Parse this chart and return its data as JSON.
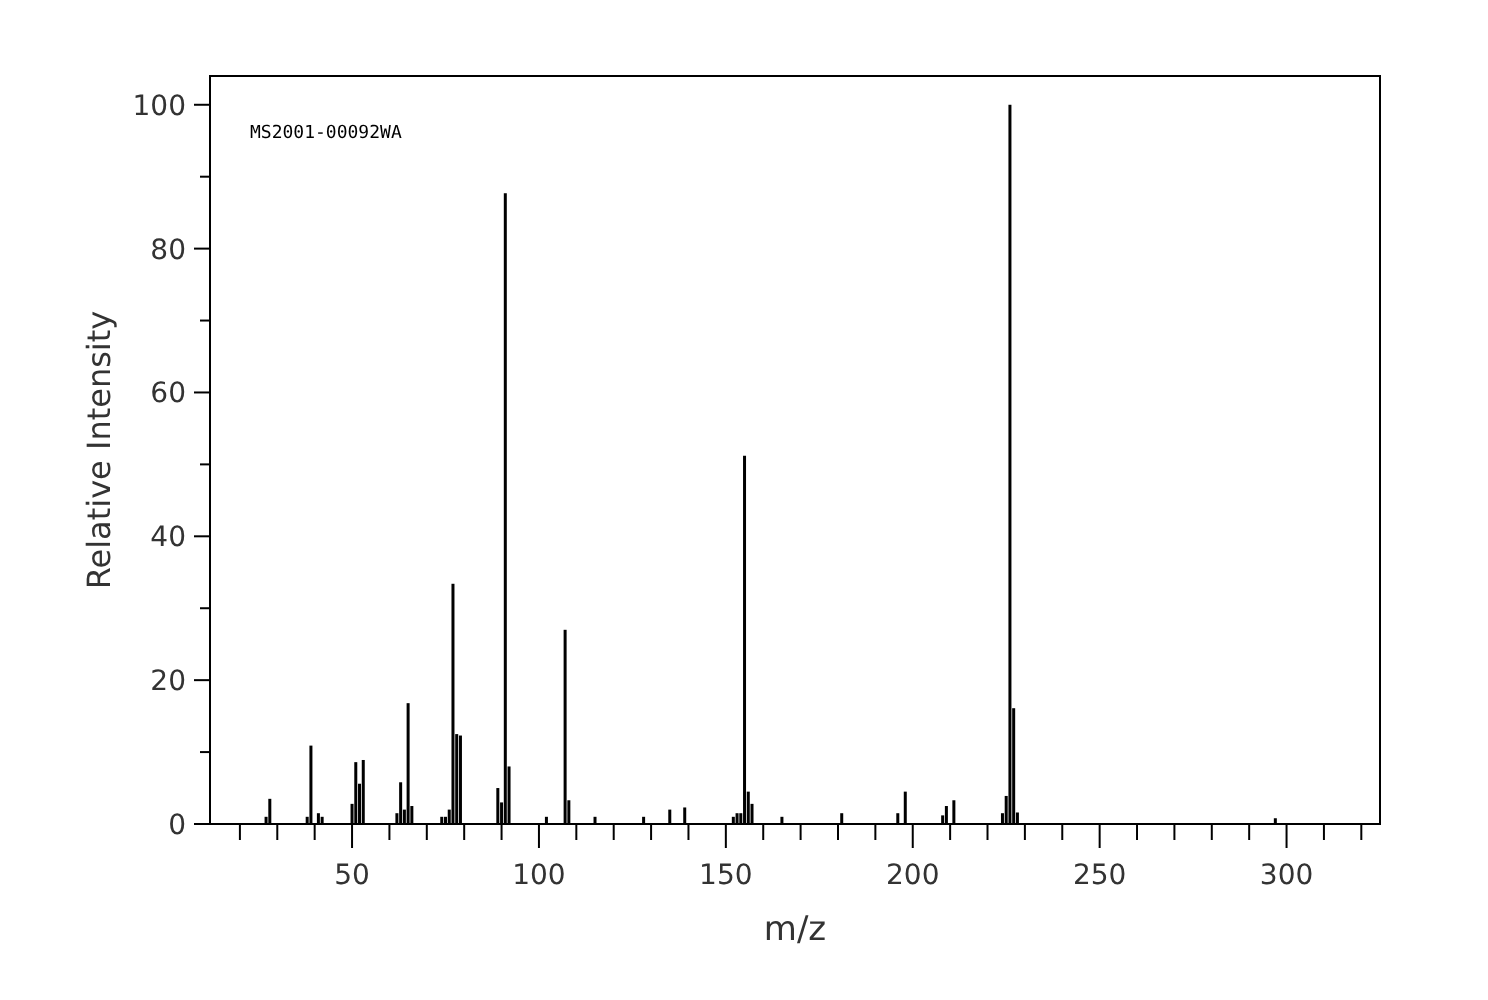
{
  "chart_data": {
    "type": "bar",
    "xlabel": "m/z",
    "ylabel": "Relative Intensity",
    "annotations": [
      "MS2001-00092WA"
    ],
    "x": [
      27,
      28,
      38,
      39,
      41,
      42,
      50,
      51,
      52,
      53,
      62,
      63,
      64,
      65,
      66,
      74,
      75,
      76,
      77,
      78,
      79,
      89,
      90,
      91,
      92,
      102,
      107,
      108,
      115,
      128,
      135,
      139,
      152,
      153,
      154,
      155,
      156,
      157,
      165,
      181,
      196,
      198,
      208,
      209,
      211,
      224,
      225,
      226,
      227,
      228,
      297
    ],
    "values": [
      1,
      3.5,
      1,
      10.9,
      1.5,
      1,
      2.8,
      8.6,
      5.6,
      8.9,
      1.5,
      5.8,
      2,
      16.8,
      2.5,
      1,
      1,
      2,
      33.4,
      12.5,
      12.3,
      5,
      3,
      87.7,
      8,
      1,
      27,
      3.3,
      1,
      1,
      2,
      2.3,
      1,
      1.5,
      1.5,
      51.2,
      4.5,
      2.8,
      1,
      1.5,
      1.5,
      4.5,
      1.2,
      2.5,
      3.3,
      1.5,
      3.9,
      100,
      16.1,
      1.6,
      0.8
    ],
    "color": "#000000",
    "xlim": [
      12,
      325
    ],
    "ylim": [
      0,
      104
    ],
    "xticks": [
      {
        "value": 20,
        "label": null
      },
      {
        "value": 30,
        "label": null
      },
      {
        "value": 40,
        "label": null
      },
      50,
      {
        "value": 60,
        "label": null
      },
      {
        "value": 70,
        "label": null
      },
      {
        "value": 80,
        "label": null
      },
      {
        "value": 90,
        "label": null
      },
      100,
      {
        "value": 110,
        "label": null
      },
      {
        "value": 120,
        "label": null
      },
      {
        "value": 130,
        "label": null
      },
      {
        "value": 140,
        "label": null
      },
      150,
      {
        "value": 160,
        "label": null
      },
      {
        "value": 170,
        "label": null
      },
      {
        "value": 180,
        "label": null
      },
      {
        "value": 190,
        "label": null
      },
      200,
      {
        "value": 210,
        "label": null
      },
      {
        "value": 220,
        "label": null
      },
      {
        "value": 230,
        "label": null
      },
      {
        "value": 240,
        "label": null
      },
      250,
      {
        "value": 260,
        "label": null
      },
      {
        "value": 270,
        "label": null
      },
      {
        "value": 280,
        "label": null
      },
      {
        "value": 290,
        "label": null
      },
      300,
      {
        "value": 310,
        "label": null
      },
      {
        "value": 320,
        "label": null
      }
    ],
    "yticks": [
      0,
      {
        "value": 10,
        "label": null
      },
      20,
      {
        "value": 30,
        "label": null
      },
      40,
      {
        "value": 50,
        "label": null
      },
      60,
      {
        "value": 70,
        "label": null
      },
      80,
      {
        "value": 90,
        "label": null
      },
      100
    ],
    "grid": false
  }
}
